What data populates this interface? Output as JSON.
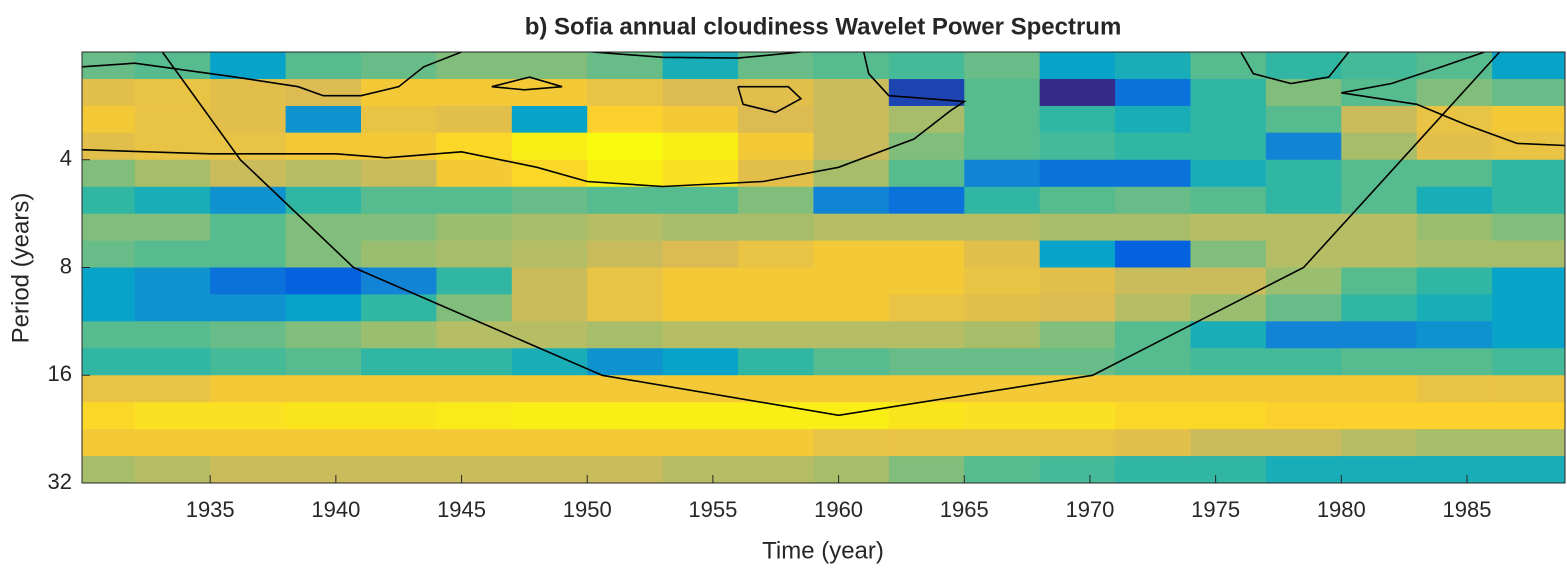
{
  "chart_data": {
    "type": "heatmap",
    "title": "b) Sofia annual cloudiness Wavelet Power Spectrum",
    "xlabel": "Time (year)",
    "ylabel": "Period (years)",
    "xlim": [
      1929.9,
      1988.9
    ],
    "ylim": [
      2,
      32
    ],
    "yscale": "log2",
    "y_inverted": true,
    "xticks": [
      1935,
      1940,
      1945,
      1950,
      1955,
      1960,
      1965,
      1970,
      1975,
      1980,
      1985
    ],
    "yticks": [
      4,
      8,
      16,
      32
    ],
    "colormap": "parula",
    "contour_color": "#000000",
    "x_bins": [
      1929,
      1932,
      1935,
      1938,
      1941,
      1944,
      1947,
      1950,
      1953,
      1956,
      1959,
      1962,
      1965,
      1968,
      1971,
      1974,
      1977,
      1980,
      1983,
      1986,
      1989
    ],
    "period_bins": [
      2,
      2.38,
      2.83,
      3.36,
      4,
      4.76,
      5.66,
      6.73,
      8,
      9.51,
      11.31,
      13.45,
      16,
      19.03,
      22.63,
      26.91,
      32
    ],
    "z": [
      [
        0.62,
        0.6,
        0.45,
        0.6,
        0.62,
        0.65,
        0.65,
        0.62,
        0.5,
        0.62,
        0.6,
        0.58,
        0.62,
        0.45,
        0.5,
        0.6,
        0.55,
        0.58,
        0.6,
        0.45
      ],
      [
        0.8,
        0.82,
        0.8,
        0.78,
        0.85,
        0.85,
        0.85,
        0.82,
        0.78,
        0.8,
        0.75,
        0.2,
        0.6,
        0.15,
        0.3,
        0.55,
        0.65,
        0.6,
        0.65,
        0.62
      ],
      [
        0.85,
        0.82,
        0.8,
        0.4,
        0.82,
        0.8,
        0.45,
        0.88,
        0.85,
        0.78,
        0.75,
        0.7,
        0.6,
        0.55,
        0.5,
        0.55,
        0.6,
        0.75,
        0.82,
        0.85
      ],
      [
        0.8,
        0.82,
        0.82,
        0.85,
        0.85,
        0.9,
        0.95,
        0.98,
        0.95,
        0.85,
        0.75,
        0.65,
        0.6,
        0.58,
        0.55,
        0.55,
        0.35,
        0.7,
        0.8,
        0.82
      ],
      [
        0.65,
        0.7,
        0.75,
        0.72,
        0.75,
        0.85,
        0.9,
        0.95,
        0.92,
        0.8,
        0.7,
        0.6,
        0.35,
        0.3,
        0.3,
        0.5,
        0.55,
        0.6,
        0.6,
        0.55
      ],
      [
        0.55,
        0.5,
        0.4,
        0.55,
        0.6,
        0.6,
        0.62,
        0.6,
        0.6,
        0.65,
        0.35,
        0.3,
        0.55,
        0.6,
        0.62,
        0.6,
        0.55,
        0.6,
        0.5,
        0.55
      ],
      [
        0.65,
        0.65,
        0.6,
        0.65,
        0.65,
        0.68,
        0.7,
        0.72,
        0.7,
        0.7,
        0.72,
        0.72,
        0.72,
        0.7,
        0.7,
        0.72,
        0.72,
        0.72,
        0.68,
        0.65
      ],
      [
        0.62,
        0.6,
        0.6,
        0.65,
        0.68,
        0.7,
        0.72,
        0.75,
        0.78,
        0.82,
        0.85,
        0.85,
        0.8,
        0.45,
        0.25,
        0.65,
        0.72,
        0.72,
        0.7,
        0.7
      ],
      [
        0.45,
        0.4,
        0.3,
        0.25,
        0.35,
        0.55,
        0.75,
        0.82,
        0.85,
        0.85,
        0.85,
        0.85,
        0.82,
        0.8,
        0.75,
        0.75,
        0.68,
        0.6,
        0.55,
        0.45
      ],
      [
        0.45,
        0.4,
        0.4,
        0.45,
        0.55,
        0.65,
        0.75,
        0.82,
        0.85,
        0.85,
        0.85,
        0.82,
        0.8,
        0.78,
        0.72,
        0.68,
        0.62,
        0.55,
        0.5,
        0.45
      ],
      [
        0.6,
        0.6,
        0.62,
        0.65,
        0.68,
        0.72,
        0.72,
        0.7,
        0.72,
        0.72,
        0.72,
        0.72,
        0.7,
        0.65,
        0.6,
        0.5,
        0.35,
        0.35,
        0.4,
        0.45
      ],
      [
        0.55,
        0.55,
        0.58,
        0.6,
        0.55,
        0.55,
        0.5,
        0.4,
        0.45,
        0.55,
        0.6,
        0.62,
        0.62,
        0.62,
        0.6,
        0.58,
        0.58,
        0.6,
        0.6,
        0.58
      ],
      [
        0.82,
        0.82,
        0.85,
        0.85,
        0.85,
        0.85,
        0.85,
        0.85,
        0.85,
        0.85,
        0.85,
        0.85,
        0.85,
        0.85,
        0.85,
        0.85,
        0.85,
        0.85,
        0.82,
        0.82
      ],
      [
        0.9,
        0.92,
        0.92,
        0.93,
        0.93,
        0.94,
        0.95,
        0.95,
        0.95,
        0.95,
        0.95,
        0.93,
        0.92,
        0.92,
        0.9,
        0.9,
        0.88,
        0.88,
        0.88,
        0.88
      ],
      [
        0.85,
        0.85,
        0.85,
        0.85,
        0.85,
        0.85,
        0.85,
        0.85,
        0.85,
        0.85,
        0.82,
        0.82,
        0.82,
        0.82,
        0.8,
        0.75,
        0.75,
        0.72,
        0.7,
        0.7
      ],
      [
        0.7,
        0.72,
        0.75,
        0.75,
        0.75,
        0.75,
        0.75,
        0.75,
        0.72,
        0.72,
        0.7,
        0.65,
        0.6,
        0.58,
        0.55,
        0.55,
        0.5,
        0.5,
        0.5,
        0.5
      ]
    ],
    "coi": {
      "x": [
        1933.1,
        1936.2,
        1940.7,
        1950.6,
        1960,
        1970.1,
        1978.5,
        1982.4,
        1986.3
      ],
      "period": [
        2,
        4,
        8,
        16,
        20.7,
        16,
        8,
        4,
        2
      ]
    },
    "contours": [
      {
        "x": [
          1929.9,
          1935,
          1940,
          1942,
          1945,
          1948,
          1950,
          1953,
          1957,
          1960,
          1963,
          1964.5,
          1965,
          1962,
          1961.2,
          1961
        ],
        "period": [
          3.75,
          3.85,
          3.85,
          3.95,
          3.8,
          4.2,
          4.6,
          4.75,
          4.6,
          4.2,
          3.5,
          2.9,
          2.75,
          2.65,
          2.3,
          2
        ]
      },
      {
        "x": [
          1929.9,
          1932,
          1936,
          1938.5,
          1939.5,
          1941,
          1942.5,
          1943.5,
          1945
        ],
        "period": [
          2.2,
          2.15,
          2.35,
          2.5,
          2.65,
          2.65,
          2.5,
          2.2,
          2
        ]
      },
      {
        "x": [
          1950.2,
          1953,
          1956,
          1958.5
        ],
        "period": [
          2,
          2.07,
          2.08,
          2
        ]
      },
      {
        "x": [
          1946.2,
          1947.7,
          1949,
          1947.5,
          1946.2
        ],
        "period": [
          2.5,
          2.35,
          2.5,
          2.55,
          2.5
        ]
      },
      {
        "x": [
          1956,
          1958,
          1958.5,
          1957.5,
          1956.2,
          1956
        ],
        "period": [
          2.5,
          2.5,
          2.7,
          2.95,
          2.8,
          2.5
        ]
      },
      {
        "x": [
          1976,
          1976.5,
          1978,
          1979.5,
          1980.3
        ],
        "period": [
          2,
          2.3,
          2.45,
          2.35,
          2
        ]
      },
      {
        "x": [
          1988.9,
          1987,
          1985,
          1983,
          1980,
          1982,
          1984,
          1985.7
        ],
        "period": [
          3.65,
          3.6,
          3.2,
          2.8,
          2.6,
          2.45,
          2.2,
          2
        ]
      }
    ]
  }
}
